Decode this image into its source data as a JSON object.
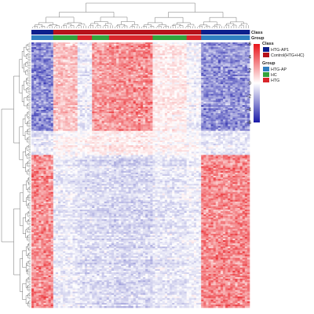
{
  "chart_data": {
    "type": "heatmap",
    "title": "",
    "xlabel": "",
    "ylabel": "",
    "color_scale": {
      "min": -6,
      "max": 6,
      "ticks": [
        6,
        4,
        2,
        0,
        -2,
        -4,
        -6
      ],
      "low_color": "#1a1aa8",
      "mid_color": "#ffffff",
      "high_color": "#e8141a"
    },
    "annotation_tracks": [
      {
        "label": "Class"
      },
      {
        "label": "Group"
      }
    ],
    "legends": [
      {
        "title": "Class",
        "entries": [
          {
            "label": "HTG-AP1",
            "color": "#0c1f8c"
          },
          {
            "label": "Control(HTG+HC)",
            "color": "#b5121b"
          }
        ]
      },
      {
        "title": "Group",
        "entries": [
          {
            "label": "HTG-AP",
            "color": "#2f7fc1"
          },
          {
            "label": "HC",
            "color": "#32a43c"
          },
          {
            "label": "HTG",
            "color": "#d9262b"
          }
        ]
      }
    ],
    "column_groups": [
      {
        "count": 9,
        "cls": "HTG-AP1",
        "group": "HTG-AP"
      },
      {
        "count": 10,
        "cls": "Control(HTG+HC)",
        "group": "HC"
      },
      {
        "count": 6,
        "cls": "Control(HTG+HC)",
        "group": "HTG"
      },
      {
        "count": 7,
        "cls": "Control(HTG+HC)",
        "group": "HC"
      },
      {
        "count": 18,
        "cls": "Control(HTG+HC)",
        "group": "HTG"
      },
      {
        "count": 14,
        "cls": "Control(HTG+HC)",
        "group": "HC"
      },
      {
        "count": 6,
        "cls": "Control(HTG+HC)",
        "group": "HTG"
      },
      {
        "count": 20,
        "cls": "HTG-AP1",
        "group": "HTG-AP"
      }
    ],
    "row_blocks": [
      {
        "count": 55,
        "pattern": [
          -3,
          1.5,
          -0.5,
          2.5,
          2.8,
          0.5,
          -0.3,
          -2.8
        ]
      },
      {
        "count": 15,
        "pattern": [
          -0.5,
          0.2,
          0.3,
          0.6,
          0.6,
          0.2,
          0.1,
          -0.5
        ]
      },
      {
        "count": 95,
        "pattern": [
          3,
          -0.5,
          -0.8,
          -0.9,
          -1,
          -0.6,
          -0.4,
          3
        ]
      }
    ]
  }
}
